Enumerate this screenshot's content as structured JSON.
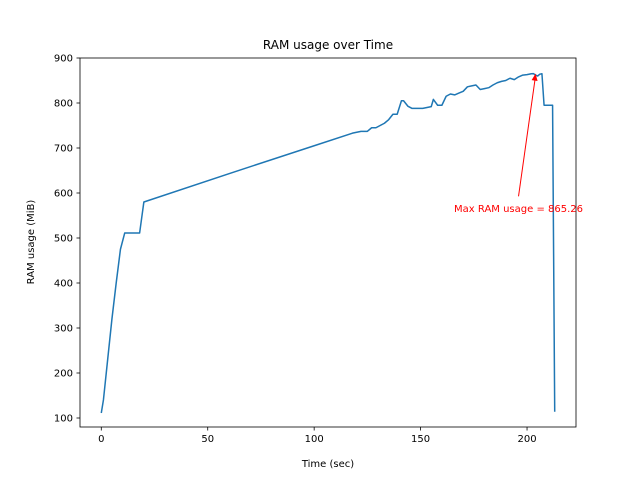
{
  "chart_data": {
    "type": "line",
    "title": "RAM usage over Time",
    "xlabel": "Time (sec)",
    "ylabel": "RAM usage (MiB)",
    "xlim": [
      -10,
      223
    ],
    "ylim": [
      80,
      900
    ],
    "xticks": [
      0,
      50,
      100,
      150,
      200
    ],
    "yticks": [
      100,
      200,
      300,
      400,
      500,
      600,
      700,
      800,
      900
    ],
    "grid": false,
    "series": [
      {
        "color": "#1f77b4",
        "x": [
          0,
          1,
          3,
          5,
          7,
          9,
          11,
          12,
          14,
          16,
          18,
          20,
          60,
          100,
          118,
          122,
          125,
          127,
          129,
          131,
          133,
          135,
          137,
          139,
          141,
          142,
          144,
          146,
          149,
          151,
          153,
          155,
          156,
          158,
          160,
          162,
          164,
          166,
          168,
          170,
          172,
          174,
          176,
          178,
          180,
          182,
          184,
          186,
          188,
          190,
          192,
          194,
          196,
          198,
          200,
          202,
          203,
          204,
          205,
          206,
          207,
          208,
          209,
          210,
          211,
          212,
          213
        ],
        "y": [
          111,
          140,
          230,
          320,
          400,
          475,
          511,
          511,
          511,
          511,
          511,
          580,
          643,
          705,
          733,
          737,
          737,
          745,
          745,
          750,
          755,
          763,
          775,
          775,
          805,
          805,
          793,
          788,
          788,
          788,
          790,
          792,
          808,
          795,
          795,
          815,
          820,
          818,
          822,
          826,
          836,
          838,
          840,
          830,
          832,
          834,
          840,
          845,
          848,
          850,
          855,
          852,
          858,
          862,
          863,
          865,
          865.26,
          862,
          860,
          864,
          865,
          795,
          795,
          795,
          795,
          795,
          114
        ]
      }
    ],
    "annotations": [
      {
        "text": "Max RAM usage = 865.26",
        "color": "#ff0000",
        "point": [
          204,
          865.26
        ],
        "text_pos": [
          196,
          566
        ]
      }
    ]
  }
}
